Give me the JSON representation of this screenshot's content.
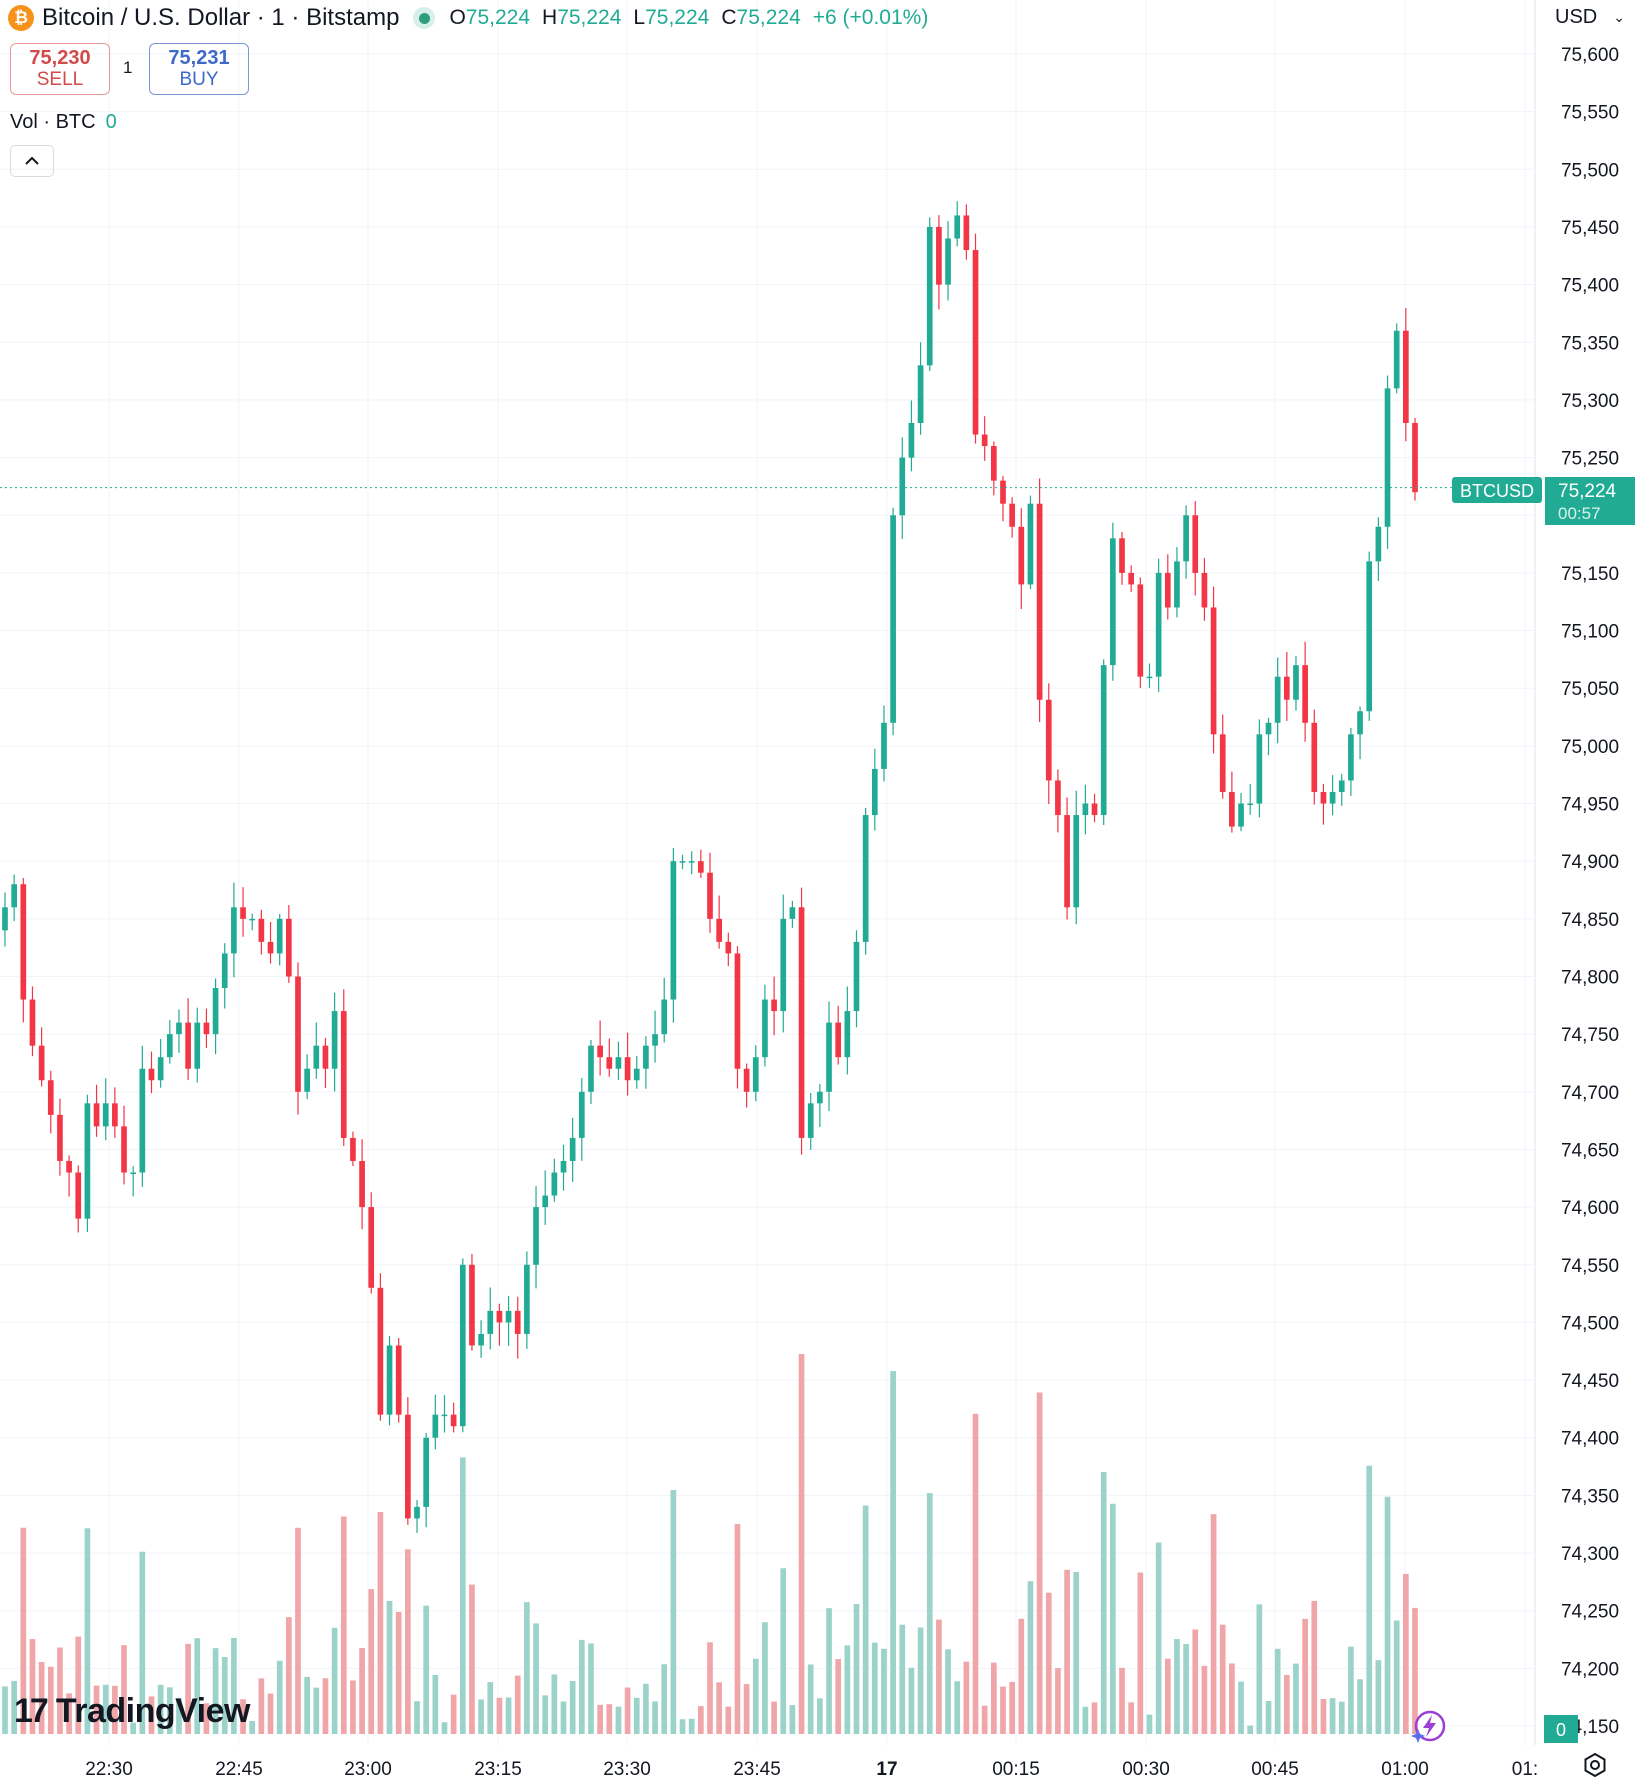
{
  "header": {
    "coin_symbol": "₿",
    "title": "Bitcoin / U.S. Dollar · 1 · Bitstamp",
    "ohlc": {
      "o_label": "O",
      "o_value": "75,224",
      "h_label": "H",
      "h_value": "75,224",
      "l_label": "L",
      "l_value": "75,224",
      "c_label": "C",
      "c_value": "75,224",
      "change": "+6 (+0.01%)"
    }
  },
  "trade": {
    "sell_price": "75,230",
    "sell_label": "SELL",
    "quantity": "1",
    "buy_price": "75,231",
    "buy_label": "BUY"
  },
  "volume_legend": {
    "label": "Vol · BTC",
    "value": "0"
  },
  "currency_selector": {
    "label": "USD",
    "chevron": "⌄"
  },
  "branding": {
    "name": "TradingView",
    "mark": "17"
  },
  "colors": {
    "up": "#22ab94",
    "down": "#f23645",
    "up_vol": "#9bd3ca",
    "down_vol": "#f0a5a8",
    "grid": "#f0f3fa"
  },
  "chart_data": {
    "type": "candlestick",
    "y_axis_ticks": [
      "75,600",
      "75,550",
      "75,500",
      "75,450",
      "75,400",
      "75,350",
      "75,300",
      "75,250",
      "75,200",
      "75,150",
      "75,100",
      "75,050",
      "75,000",
      "74,950",
      "74,900",
      "74,850",
      "74,800",
      "74,750",
      "74,700",
      "74,650",
      "74,600",
      "74,550",
      "74,500",
      "74,450",
      "74,400",
      "74,350",
      "74,300",
      "74,250",
      "74,200",
      "74,150"
    ],
    "x_axis_ticks": [
      "22:30",
      "22:45",
      "23:00",
      "23:15",
      "23:30",
      "23:45",
      "17",
      "00:15",
      "00:30",
      "00:45",
      "01:00",
      "01:"
    ],
    "ylim": [
      74150,
      75600
    ],
    "current_price": {
      "symbol": "BTCUSD",
      "price": "75,224",
      "countdown": "00:57",
      "value": 75224
    },
    "volume_badge": "0",
    "interval_minutes": 1,
    "close_series": [
      74860,
      74880,
      74780,
      74740,
      74710,
      74680,
      74640,
      74630,
      74590,
      74690,
      74670,
      74690,
      74670,
      74630,
      74630,
      74720,
      74710,
      74730,
      74750,
      74760,
      74720,
      74760,
      74750,
      74790,
      74820,
      74860,
      74850,
      74850,
      74830,
      74820,
      74850,
      74800,
      74700,
      74720,
      74740,
      74720,
      74770,
      74660,
      74640,
      74600,
      74530,
      74420,
      74480,
      74420,
      74330,
      74340,
      74400,
      74420,
      74420,
      74410,
      74550,
      74480,
      74490,
      74510,
      74500,
      74510,
      74490,
      74550,
      74600,
      74610,
      74630,
      74640,
      74660,
      74700,
      74740,
      74730,
      74720,
      74730,
      74710,
      74720,
      74740,
      74750,
      74780,
      74900,
      74900,
      74900,
      74890,
      74850,
      74830,
      74820,
      74720,
      74700,
      74730,
      74780,
      74770,
      74850,
      74860,
      74660,
      74690,
      74700,
      74760,
      74730,
      74770,
      74830,
      74940,
      74980,
      75020,
      75200,
      75250,
      75280,
      75330,
      75450,
      75400,
      75440,
      75460,
      75430,
      75270,
      75260,
      75230,
      75210,
      75190,
      75140,
      75210,
      75040,
      74970,
      74940,
      74860,
      74940,
      74950,
      74940,
      75070,
      75180,
      75150,
      75140,
      75060,
      75060,
      75150,
      75120,
      75160,
      75200,
      75150,
      75120,
      75010,
      74960,
      74930,
      74950,
      74950,
      75010,
      75020,
      75060,
      75040,
      75070,
      75020,
      74960,
      74950,
      74960,
      74970,
      75010,
      75030,
      75160,
      75190,
      75310,
      75360,
      75280,
      75220
    ]
  }
}
